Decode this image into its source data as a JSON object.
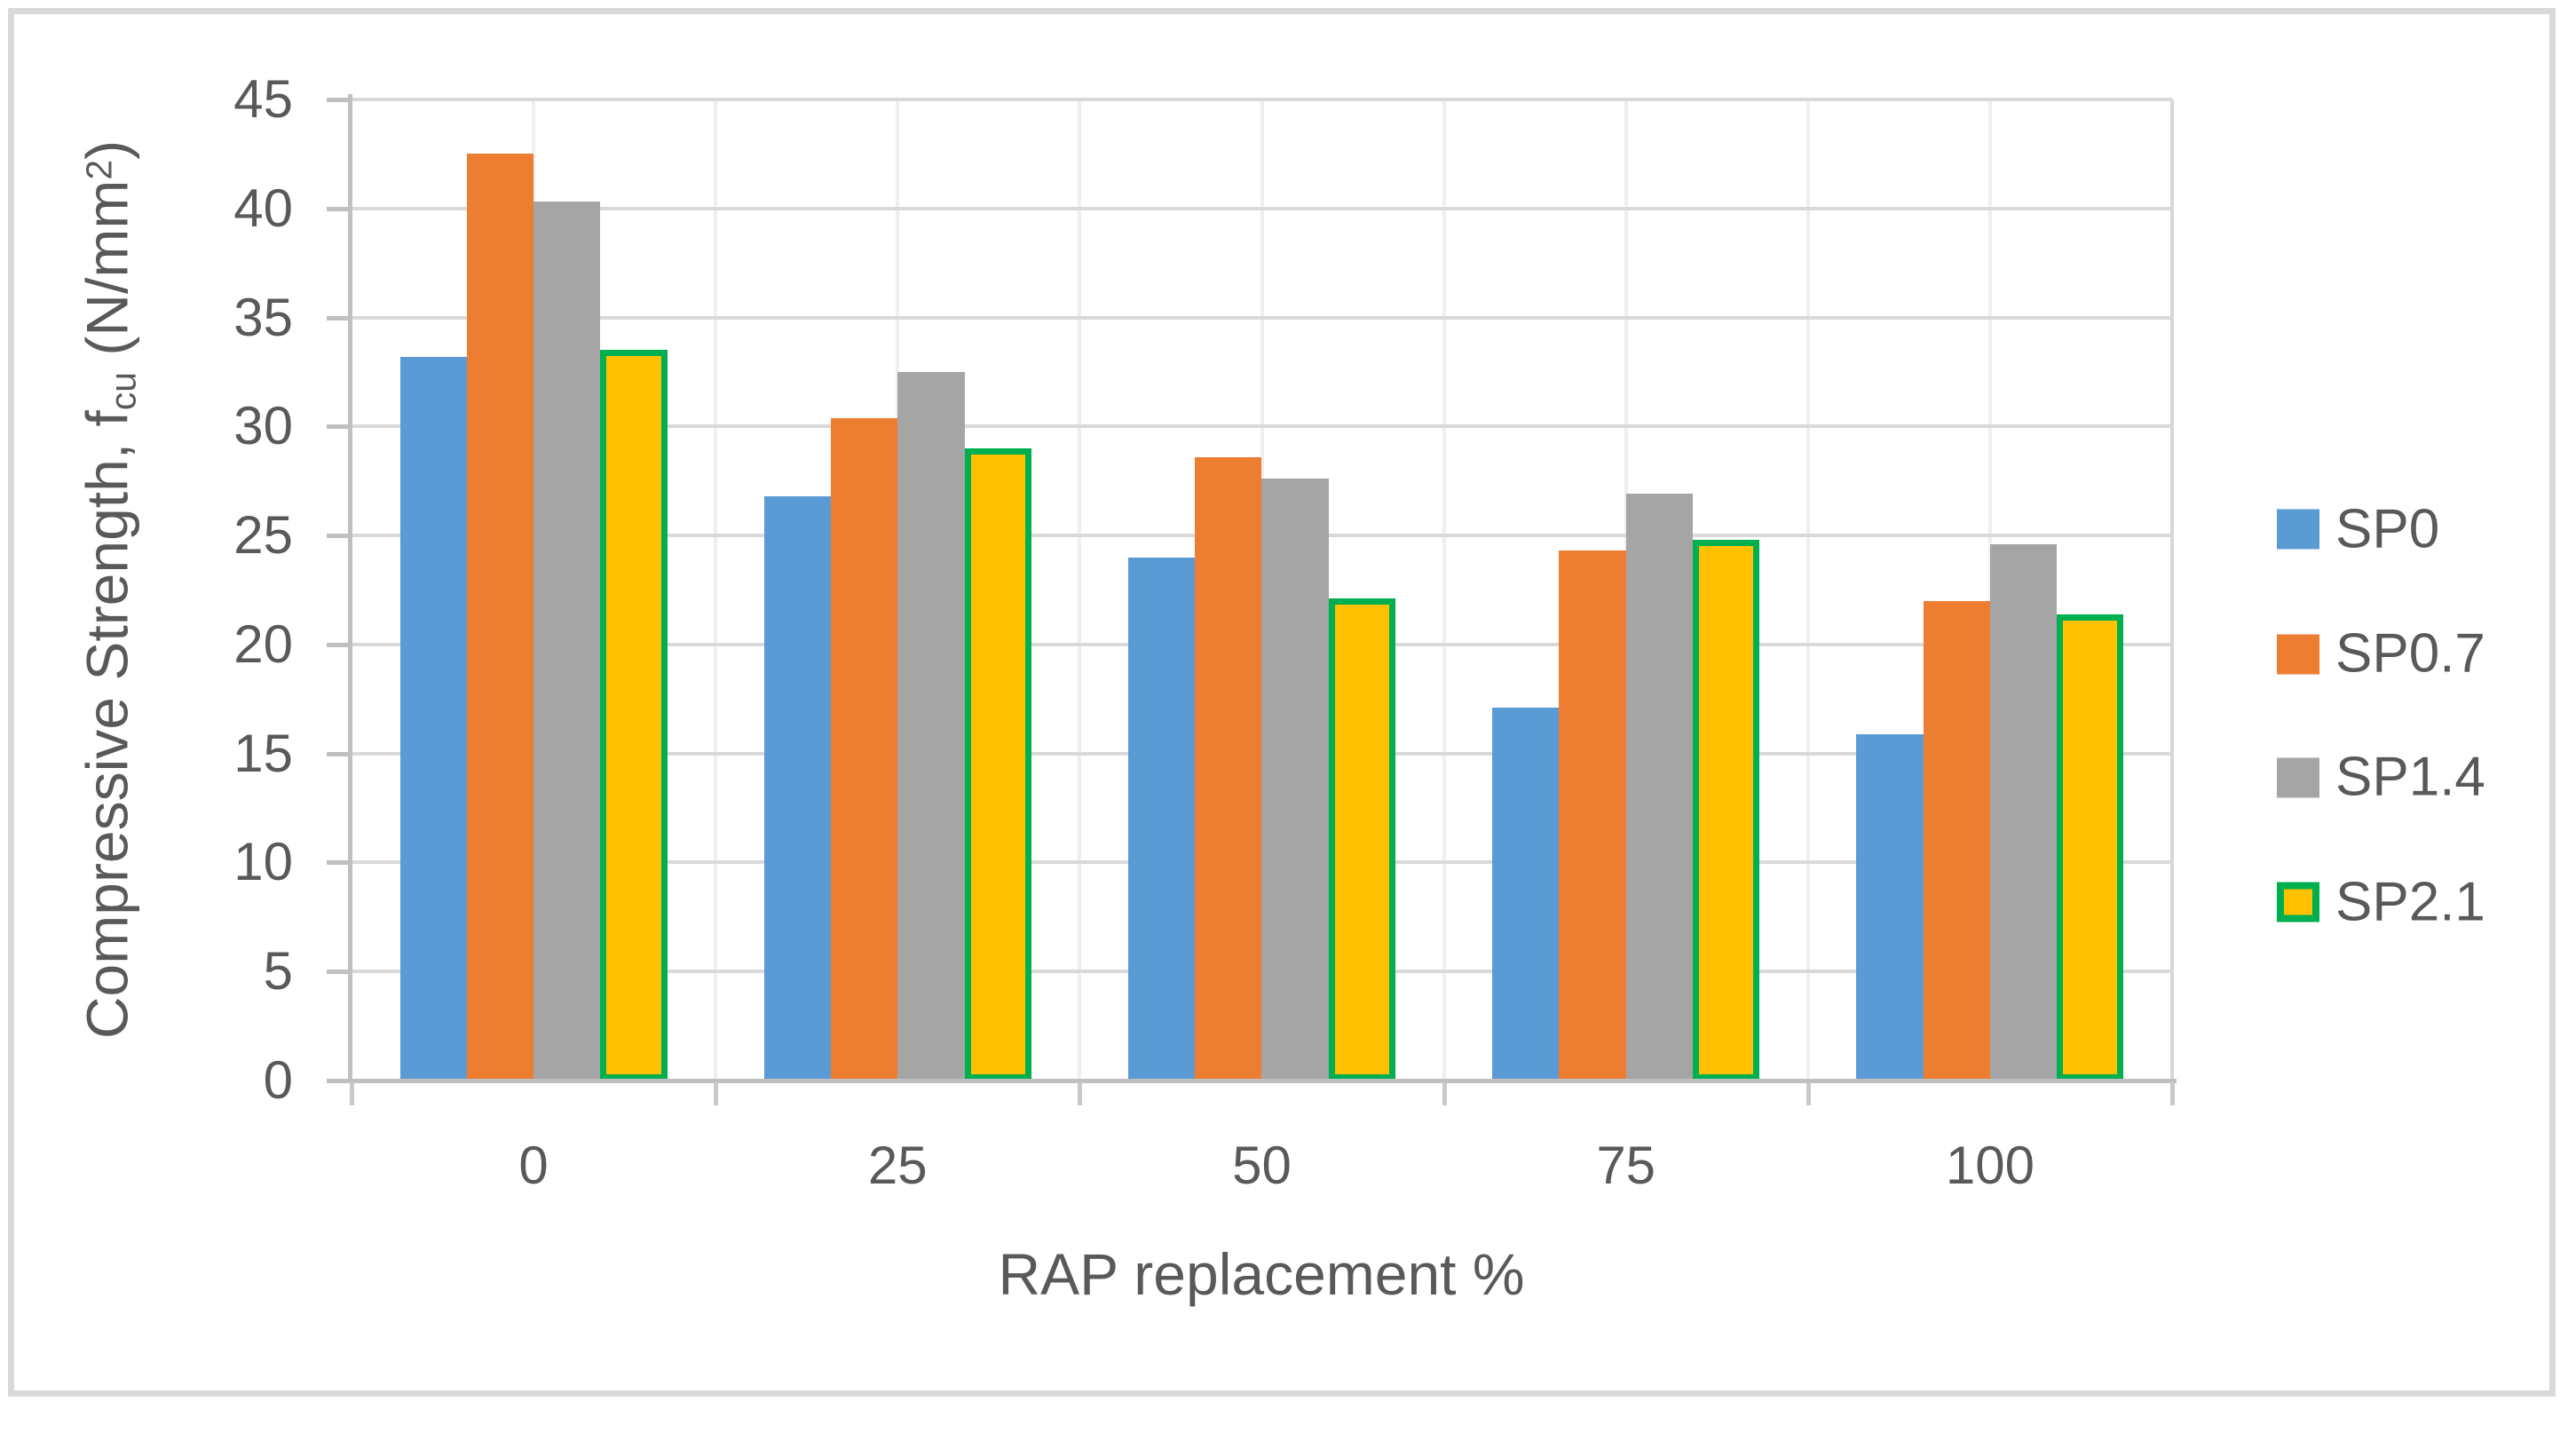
{
  "figure": {
    "background": "#FFFFFF",
    "frame_border_color": "#D9D9D9",
    "text_color": "#595959",
    "h_gridline_color": "#D9D9D9",
    "v_gridline_color": "#EFEFEF",
    "axis_line_color": "#C0C0C0"
  },
  "chart_data": {
    "type": "bar",
    "title": "",
    "xlabel": "RAP replacement %",
    "ylabel": "Compressive Strength, fcu (N/mm2)",
    "ylabel_parts": {
      "prefix": "Compressive Strength, f",
      "sub": "cu",
      "mid": " (N/mm",
      "sup": "2",
      "suffix": ")"
    },
    "categories": [
      "0",
      "25",
      "50",
      "75",
      "100"
    ],
    "series": [
      {
        "name": "SP0",
        "color": "#5B9BD5",
        "values": [
          33.2,
          26.8,
          24.0,
          17.1,
          15.9
        ]
      },
      {
        "name": "SP0.7",
        "color": "#ED7D31",
        "values": [
          42.5,
          30.4,
          28.6,
          24.3,
          22.0
        ]
      },
      {
        "name": "SP1.4",
        "color": "#A5A5A5",
        "values": [
          40.3,
          32.5,
          27.6,
          26.9,
          24.6
        ]
      },
      {
        "name": "SP2.1",
        "color": "#FFC000",
        "border_color": "#00B050",
        "values": [
          33.5,
          29.0,
          22.1,
          24.8,
          21.4
        ]
      }
    ],
    "y_axis": {
      "min": 0,
      "max": 45,
      "step": 5,
      "tick_labels": [
        "0",
        "5",
        "10",
        "15",
        "20",
        "25",
        "30",
        "35",
        "40",
        "45"
      ]
    },
    "x_axis": {
      "tick_labels": [
        "0",
        "25",
        "50",
        "75",
        "100"
      ]
    },
    "legend": {
      "position": "right",
      "items": [
        "SP0",
        "SP0.7",
        "SP1.4",
        "SP2.1"
      ]
    },
    "grid": {
      "horizontal": true,
      "vertical": true
    }
  }
}
